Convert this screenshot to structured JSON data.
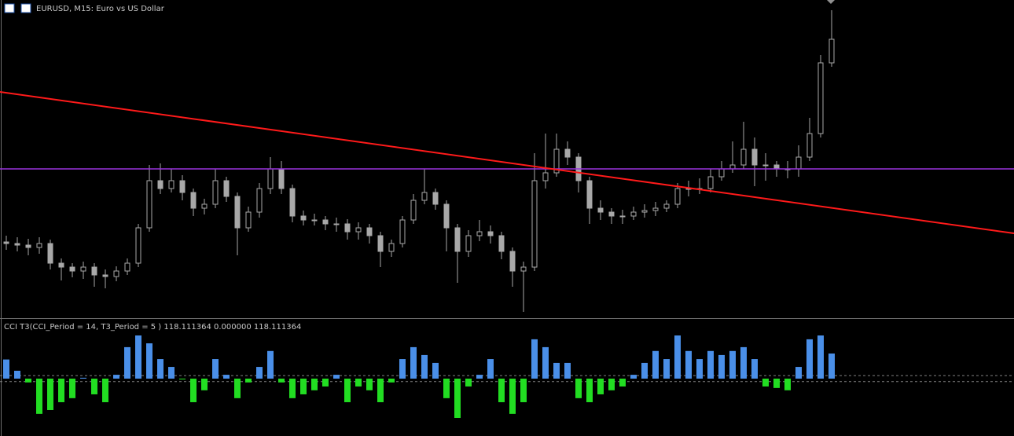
{
  "chart_data": [
    {
      "type": "candlestick",
      "title": "EURUSD, M15: Euro vs US Dollar",
      "color": "#a8a8a8",
      "ylim": [
        0,
        405
      ],
      "open": [
        97,
        95,
        93,
        90,
        95,
        70,
        65,
        60,
        65,
        55,
        53,
        60,
        70,
        115,
        175,
        165,
        175,
        160,
        140,
        145,
        175,
        155,
        115,
        135,
        165,
        190,
        165,
        130,
        125,
        125,
        120,
        120,
        110,
        115,
        105,
        85,
        95,
        125,
        150,
        160,
        145,
        115,
        85,
        105,
        110,
        105,
        85,
        60,
        65,
        175,
        185,
        215,
        205,
        175,
        140,
        135,
        130,
        130,
        135,
        137,
        140,
        145,
        165,
        165,
        165,
        180,
        190,
        195,
        215,
        195,
        195,
        190,
        190,
        205,
        235,
        325
      ],
      "high": [
        105,
        103,
        101,
        103,
        100,
        76,
        70,
        72,
        70,
        62,
        66,
        76,
        120,
        195,
        197,
        190,
        182,
        165,
        152,
        190,
        180,
        160,
        142,
        172,
        205,
        200,
        170,
        137,
        133,
        130,
        128,
        126,
        122,
        120,
        110,
        100,
        130,
        158,
        190,
        165,
        150,
        120,
        112,
        125,
        118,
        110,
        90,
        72,
        210,
        235,
        235,
        225,
        210,
        180,
        150,
        140,
        138,
        142,
        145,
        148,
        150,
        172,
        175,
        178,
        190,
        200,
        225,
        250,
        230,
        210,
        200,
        200,
        220,
        255,
        335,
        392
      ],
      "low": [
        87,
        85,
        80,
        82,
        62,
        48,
        52,
        50,
        40,
        38,
        47,
        55,
        65,
        110,
        158,
        160,
        150,
        130,
        132,
        140,
        148,
        80,
        110,
        128,
        158,
        158,
        122,
        118,
        118,
        112,
        110,
        100,
        100,
        95,
        65,
        78,
        90,
        120,
        145,
        138,
        85,
        45,
        78,
        98,
        95,
        75,
        40,
        8,
        60,
        165,
        180,
        195,
        160,
        120,
        125,
        120,
        120,
        125,
        128,
        130,
        135,
        140,
        155,
        158,
        160,
        175,
        185,
        190,
        168,
        175,
        180,
        178,
        180,
        200,
        230,
        320
      ],
      "close": [
        95,
        93,
        90,
        95,
        70,
        65,
        60,
        65,
        55,
        53,
        60,
        70,
        115,
        175,
        165,
        175,
        160,
        140,
        145,
        175,
        155,
        115,
        135,
        165,
        190,
        165,
        130,
        125,
        125,
        120,
        120,
        110,
        115,
        105,
        85,
        95,
        125,
        150,
        160,
        145,
        115,
        85,
        105,
        110,
        105,
        85,
        60,
        65,
        175,
        185,
        215,
        205,
        175,
        140,
        135,
        130,
        130,
        135,
        137,
        140,
        145,
        165,
        165,
        165,
        180,
        190,
        195,
        215,
        195,
        195,
        190,
        190,
        205,
        235,
        325,
        355
      ],
      "hline": {
        "value": 190,
        "color": "#9933dd"
      },
      "trendline": {
        "values": [
          288,
          108
        ],
        "color": "#ff1a1a"
      }
    },
    {
      "type": "bar",
      "title": "CCI T3(CCI_Period = 14, T3_Period = 5 ) 118.111364 0.000000 118.111364",
      "up_color": "#4a8fe8",
      "down_color": "#22dd22",
      "ylim": [
        -270,
        277
      ],
      "levels": [
        14,
        -14
      ],
      "values": [
        90,
        37,
        -18,
        -166,
        -148,
        -111,
        -92,
        4,
        -74,
        -111,
        18,
        148,
        203,
        166,
        92,
        55,
        -4,
        -111,
        -55,
        92,
        18,
        -92,
        -18,
        55,
        130,
        -18,
        -92,
        -74,
        -55,
        -37,
        18,
        -111,
        -37,
        -55,
        -111,
        -18,
        92,
        148,
        111,
        74,
        -92,
        -185,
        -37,
        18,
        92,
        -111,
        -166,
        -111,
        185,
        148,
        74,
        74,
        -92,
        -111,
        -74,
        -55,
        -37,
        18,
        74,
        130,
        92,
        203,
        130,
        92,
        130,
        111,
        130,
        148,
        92,
        -37,
        -44,
        -55,
        55,
        185,
        203,
        118
      ]
    }
  ]
}
